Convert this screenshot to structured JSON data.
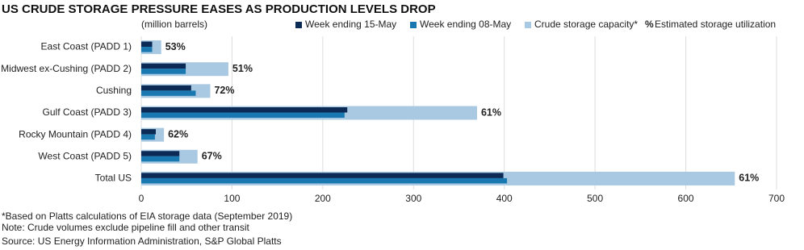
{
  "chart_data": {
    "type": "bar",
    "orientation": "horizontal",
    "title": "US CRUDE STORAGE PRESSURE EASES AS PRODUCTION LEVELS DROP",
    "subtitle": "(million barrels)",
    "categories": [
      "East Coast (PADD 1)",
      "Midwest ex-Cushing (PADD 2)",
      "Cushing",
      "Gulf Coast (PADD 3)",
      "Rocky Mountain (PADD 4)",
      "West Coast (PADD 5)",
      "Total US"
    ],
    "series": [
      {
        "name": "Week ending 15-May",
        "color": "#0b2a56",
        "values": [
          12,
          49,
          55,
          227,
          16,
          42,
          399
        ]
      },
      {
        "name": "Week ending 08-May",
        "color": "#1a78b0",
        "values": [
          12,
          49,
          60,
          224,
          15,
          42,
          403
        ]
      },
      {
        "name": "Crude storage capacity*",
        "color": "#a9c9e2",
        "values": [
          22,
          96,
          76,
          370,
          25,
          62,
          654
        ]
      },
      {
        "name": "Estimated storage utilization",
        "marker": "%",
        "values": [
          53,
          51,
          72,
          61,
          62,
          67,
          61
        ],
        "value_labels": [
          "53%",
          "51%",
          "72%",
          "61%",
          "62%",
          "67%",
          "61%"
        ]
      }
    ],
    "xlim": [
      0,
      700
    ],
    "xticks": [
      0,
      100,
      200,
      300,
      400,
      500,
      600,
      700
    ],
    "grid": true,
    "notes": [
      "*Based on Platts calculations of EIA storage data (September 2019)",
      "Note: Crude volumes exclude pipeline fill and other transit",
      "Source: US Energy Information Administration, S&P Global Platts"
    ]
  }
}
